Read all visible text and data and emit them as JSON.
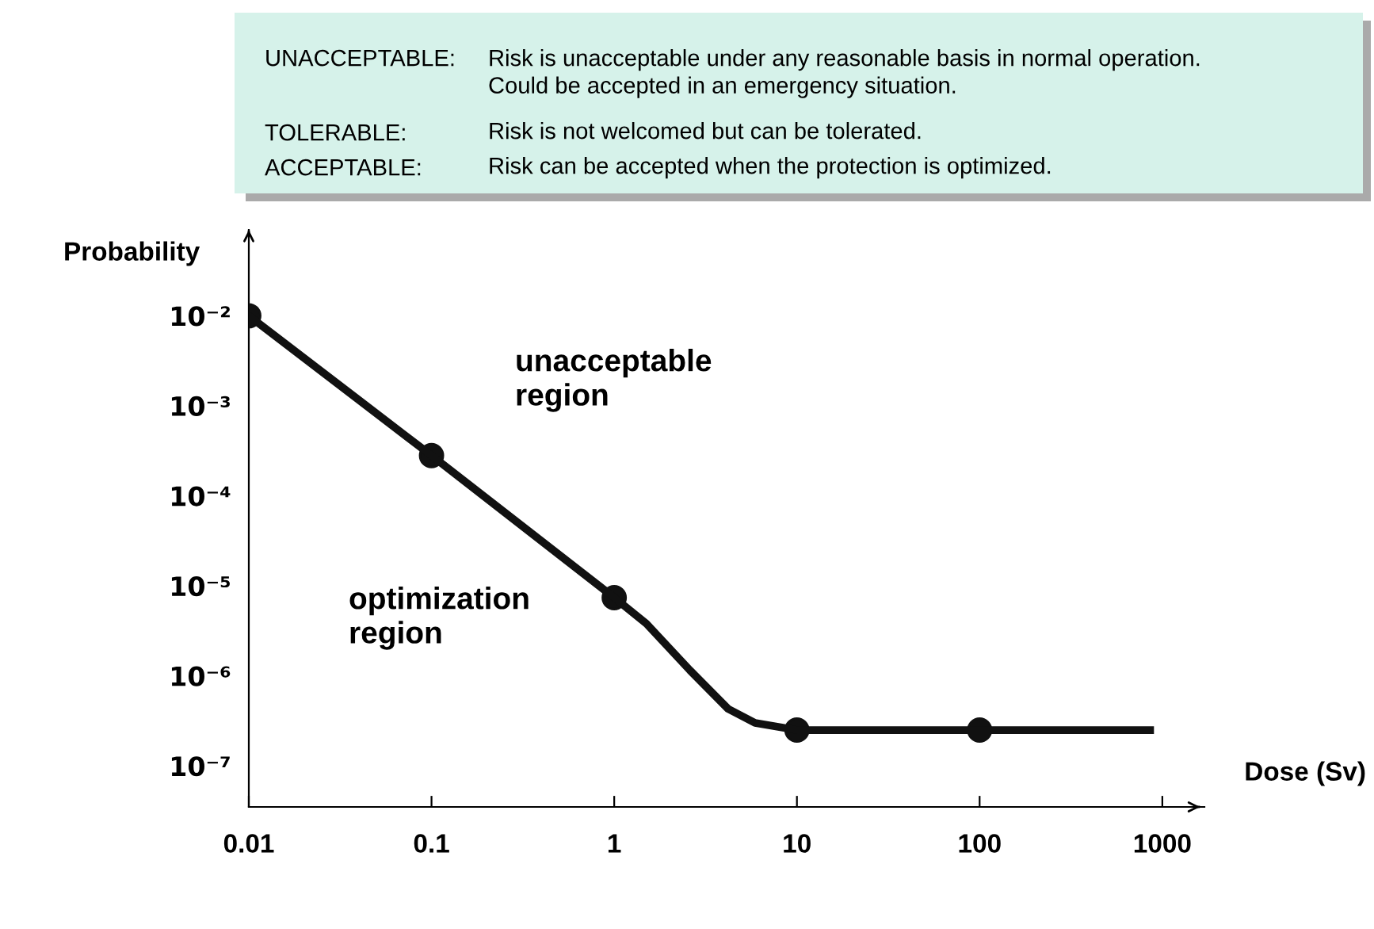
{
  "chart_data": {
    "type": "line",
    "xlabel": "Dose (Sv)",
    "ylabel": "Probability",
    "log": "xy",
    "grid": false,
    "xlim": [
      0.01,
      1700
    ],
    "ylim": [
      3.5e-08,
      0.09
    ],
    "xticks": [
      0.01,
      0.1,
      1,
      10,
      100,
      1000
    ],
    "yticks": [
      {
        "value": 0.01,
        "label": "10⁻²"
      },
      {
        "value": 0.001,
        "label": "10⁻³"
      },
      {
        "value": 0.0001,
        "label": "10⁻⁴"
      },
      {
        "value": 1e-05,
        "label": "10⁻⁵"
      },
      {
        "value": 1e-06,
        "label": "10⁻⁶"
      },
      {
        "value": 1e-07,
        "label": "10⁻⁷"
      }
    ],
    "series": [
      {
        "color": "#111111",
        "marker": "none",
        "x": [
          0.01,
          0.1,
          1,
          1.5,
          2.6,
          4.2,
          5.9,
          10,
          100,
          900
        ],
        "values": [
          0.01,
          0.00028,
          7.4e-06,
          3.8e-06,
          1.15e-06,
          4.3e-07,
          3e-07,
          2.5e-07,
          2.5e-07,
          2.5e-07
        ]
      },
      {
        "type": "scatter",
        "color": "#111111",
        "marker": "circle",
        "x": [
          0.01,
          0.1,
          1,
          10,
          100
        ],
        "values": [
          0.01,
          0.00028,
          7.4e-06,
          2.5e-07,
          2.5e-07
        ]
      }
    ],
    "annotations": [
      "UNACCEPTABLE:",
      "Risk is unacceptable under any reasonable basis in normal operation.\nCould be accepted in an emergency situation.",
      "TOLERABLE:",
      "Risk is not welcomed but can be tolerated.",
      "ACCEPTABLE:",
      "Risk can be accepted when the protection is optimized.",
      "unacceptable\nregion",
      "optimization\nregion"
    ]
  }
}
